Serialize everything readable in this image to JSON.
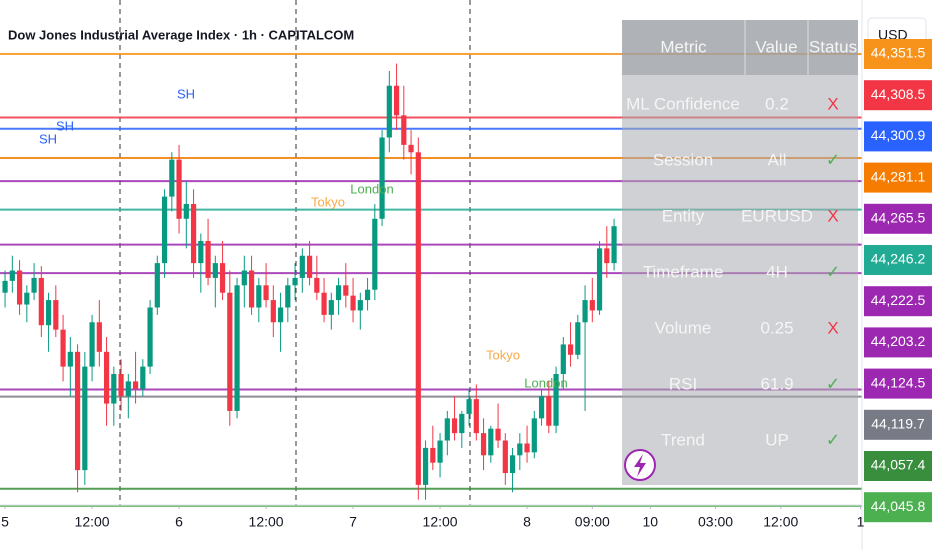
{
  "chart_data": {
    "type": "candlestick",
    "title": "Dow Jones Industrial Average Index · 1h · CAPITALCOM",
    "currency": "USD",
    "up_color": "#089981",
    "down_color": "#f23645",
    "xlim": [
      -0.7,
      118.2
    ],
    "xticks": [
      {
        "value": 0,
        "label": "5"
      },
      {
        "value": 12,
        "label": "12:00"
      },
      {
        "value": 24,
        "label": "6"
      },
      {
        "value": 36,
        "label": "12:00"
      },
      {
        "value": 48,
        "label": "7"
      },
      {
        "value": 60,
        "label": "12:00"
      },
      {
        "value": 72,
        "label": "8"
      },
      {
        "value": 81,
        "label": "09:00"
      },
      {
        "value": 89,
        "label": "10"
      },
      {
        "value": 98,
        "label": "03:00"
      },
      {
        "value": 107,
        "label": "12:00"
      },
      {
        "value": 118,
        "label": "1"
      }
    ],
    "ylim": [
      44043,
      44388
    ],
    "candles": [
      [
        44190,
        44205,
        44180,
        44198
      ],
      [
        44198,
        44215,
        44190,
        44205
      ],
      [
        44205,
        44212,
        44175,
        44182
      ],
      [
        44182,
        44195,
        44170,
        44190
      ],
      [
        44190,
        44210,
        44185,
        44200
      ],
      [
        44200,
        44208,
        44160,
        44168
      ],
      [
        44168,
        44190,
        44150,
        44185
      ],
      [
        44185,
        44195,
        44160,
        44165
      ],
      [
        44165,
        44175,
        44130,
        44140
      ],
      [
        44140,
        44160,
        44120,
        44150
      ],
      [
        44150,
        44155,
        44055,
        44070
      ],
      [
        44070,
        44150,
        44060,
        44140
      ],
      [
        44140,
        44175,
        44130,
        44170
      ],
      [
        44170,
        44185,
        44140,
        44150
      ],
      [
        44150,
        44160,
        44100,
        44115
      ],
      [
        44115,
        44140,
        44100,
        44135
      ],
      [
        44135,
        44145,
        44110,
        44120
      ],
      [
        44120,
        44135,
        44105,
        44130
      ],
      [
        44130,
        44150,
        44115,
        44125
      ],
      [
        44125,
        44145,
        44120,
        44140
      ],
      [
        44140,
        44185,
        44135,
        44180
      ],
      [
        44180,
        44215,
        44175,
        44210
      ],
      [
        44210,
        44260,
        44200,
        44255
      ],
      [
        44255,
        44285,
        44245,
        44280
      ],
      [
        44280,
        44290,
        44230,
        44240
      ],
      [
        44240,
        44265,
        44220,
        44250
      ],
      [
        44250,
        44260,
        44200,
        44210
      ],
      [
        44210,
        44230,
        44190,
        44225
      ],
      [
        44225,
        44240,
        44195,
        44200
      ],
      [
        44200,
        44215,
        44180,
        44210
      ],
      [
        44210,
        44225,
        44185,
        44190
      ],
      [
        44190,
        44205,
        44100,
        44110
      ],
      [
        44110,
        44200,
        44105,
        44195
      ],
      [
        44195,
        44215,
        44180,
        44205
      ],
      [
        44205,
        44215,
        44175,
        44180
      ],
      [
        44180,
        44200,
        44170,
        44195
      ],
      [
        44195,
        44210,
        44180,
        44185
      ],
      [
        44185,
        44195,
        44160,
        44170
      ],
      [
        44170,
        44190,
        44150,
        44180
      ],
      [
        44180,
        44200,
        44170,
        44195
      ],
      [
        44195,
        44210,
        44185,
        44200
      ],
      [
        44200,
        44220,
        44190,
        44215
      ],
      [
        44215,
        44225,
        44195,
        44200
      ],
      [
        44200,
        44215,
        44185,
        44190
      ],
      [
        44190,
        44200,
        44170,
        44175
      ],
      [
        44175,
        44190,
        44165,
        44185
      ],
      [
        44185,
        44200,
        44175,
        44195
      ],
      [
        44195,
        44210,
        44180,
        44188
      ],
      [
        44188,
        44200,
        44170,
        44178
      ],
      [
        44178,
        44190,
        44165,
        44185
      ],
      [
        44185,
        44200,
        44178,
        44192
      ],
      [
        44192,
        44250,
        44185,
        44240
      ],
      [
        44240,
        44300,
        44235,
        44295
      ],
      [
        44295,
        44340,
        44285,
        44330
      ],
      [
        44330,
        44345,
        44300,
        44310
      ],
      [
        44310,
        44330,
        44280,
        44290
      ],
      [
        44290,
        44300,
        44270,
        44285
      ],
      [
        44285,
        44295,
        44050,
        44060
      ],
      [
        44060,
        44090,
        44050,
        44085
      ],
      [
        44085,
        44100,
        44070,
        44075
      ],
      [
        44075,
        44095,
        44065,
        44090
      ],
      [
        44090,
        44110,
        44080,
        44105
      ],
      [
        44105,
        44120,
        44090,
        44095
      ],
      [
        44095,
        44110,
        44085,
        44108
      ],
      [
        44108,
        44125,
        44100,
        44118
      ],
      [
        44118,
        44128,
        44090,
        44095
      ],
      [
        44095,
        44105,
        44070,
        44080
      ],
      [
        44080,
        44100,
        44075,
        44098
      ],
      [
        44098,
        44115,
        44085,
        44090
      ],
      [
        44090,
        44095,
        44060,
        44068
      ],
      [
        44068,
        44085,
        44055,
        44080
      ],
      [
        44080,
        44095,
        44070,
        44088
      ],
      [
        44088,
        44100,
        44075,
        44082
      ],
      [
        44082,
        44110,
        44078,
        44105
      ],
      [
        44105,
        44125,
        44100,
        44120
      ],
      [
        44120,
        44130,
        44095,
        44100
      ],
      [
        44100,
        44140,
        44095,
        44135
      ],
      [
        44135,
        44160,
        44125,
        44155
      ],
      [
        44155,
        44170,
        44140,
        44148
      ],
      [
        44148,
        44175,
        44145,
        44170
      ],
      [
        44170,
        44195,
        44110,
        44185
      ],
      [
        44185,
        44200,
        44170,
        44178
      ],
      [
        44178,
        44225,
        44175,
        44220
      ],
      [
        44220,
        44235,
        44200,
        44210
      ],
      [
        44210,
        44240,
        44205,
        44235
      ]
    ],
    "levels": [
      {
        "value": 44351.5,
        "label": "44,351.5",
        "color": "#f7931a"
      },
      {
        "value": 44308.5,
        "label": "44,308.5",
        "color": "#f23645"
      },
      {
        "value": 44300.9,
        "label": "44,300.9",
        "color": "#2962ff"
      },
      {
        "value": 44281.1,
        "label": "44,281.1",
        "color": "#f57c00"
      },
      {
        "value": 44265.5,
        "label": "44,265.5",
        "color": "#9c27b0"
      },
      {
        "value": 44246.2,
        "label": "44,246.2",
        "color": "#22ab94"
      },
      {
        "value": 44222.5,
        "label": "44,222.5",
        "color": "#9c27b0"
      },
      {
        "value": 44203.2,
        "label": "44,203.2",
        "color": "#9c27b0"
      },
      {
        "value": 44124.5,
        "label": "44,124.5",
        "color": "#9c27b0"
      },
      {
        "value": 44119.7,
        "label": "44,119.7",
        "color": "#787b86"
      },
      {
        "value": 44057.4,
        "label": "44,057.4",
        "color": "#388e3c"
      },
      {
        "value": 44045.8,
        "label": "44,045.8",
        "color": "#4caf50"
      }
    ],
    "annotations": [
      "SH",
      "SH",
      "SH",
      "Tokyo",
      "London",
      "Tokyo",
      "London"
    ],
    "table": {
      "header": [
        "Metric",
        "Value",
        "Status"
      ],
      "rows": [
        {
          "metric": "ML Confidence",
          "value": "0.2",
          "status": "X",
          "status_color": "#f23645"
        },
        {
          "metric": "Session",
          "value": "All",
          "status": "✓",
          "status_color": "#4caf50"
        },
        {
          "metric": "Entity",
          "value": "EURUSD",
          "status": "X",
          "status_color": "#f23645"
        },
        {
          "metric": "Timeframe",
          "value": "4H",
          "status": "✓",
          "status_color": "#4caf50"
        },
        {
          "metric": "Volume",
          "value": "0.25",
          "status": "X",
          "status_color": "#f23645"
        },
        {
          "metric": "RSI",
          "value": "61.9",
          "status": "✓",
          "status_color": "#4caf50"
        },
        {
          "metric": "Trend",
          "value": "UP",
          "status": "✓",
          "status_color": "#4caf50"
        }
      ]
    }
  }
}
